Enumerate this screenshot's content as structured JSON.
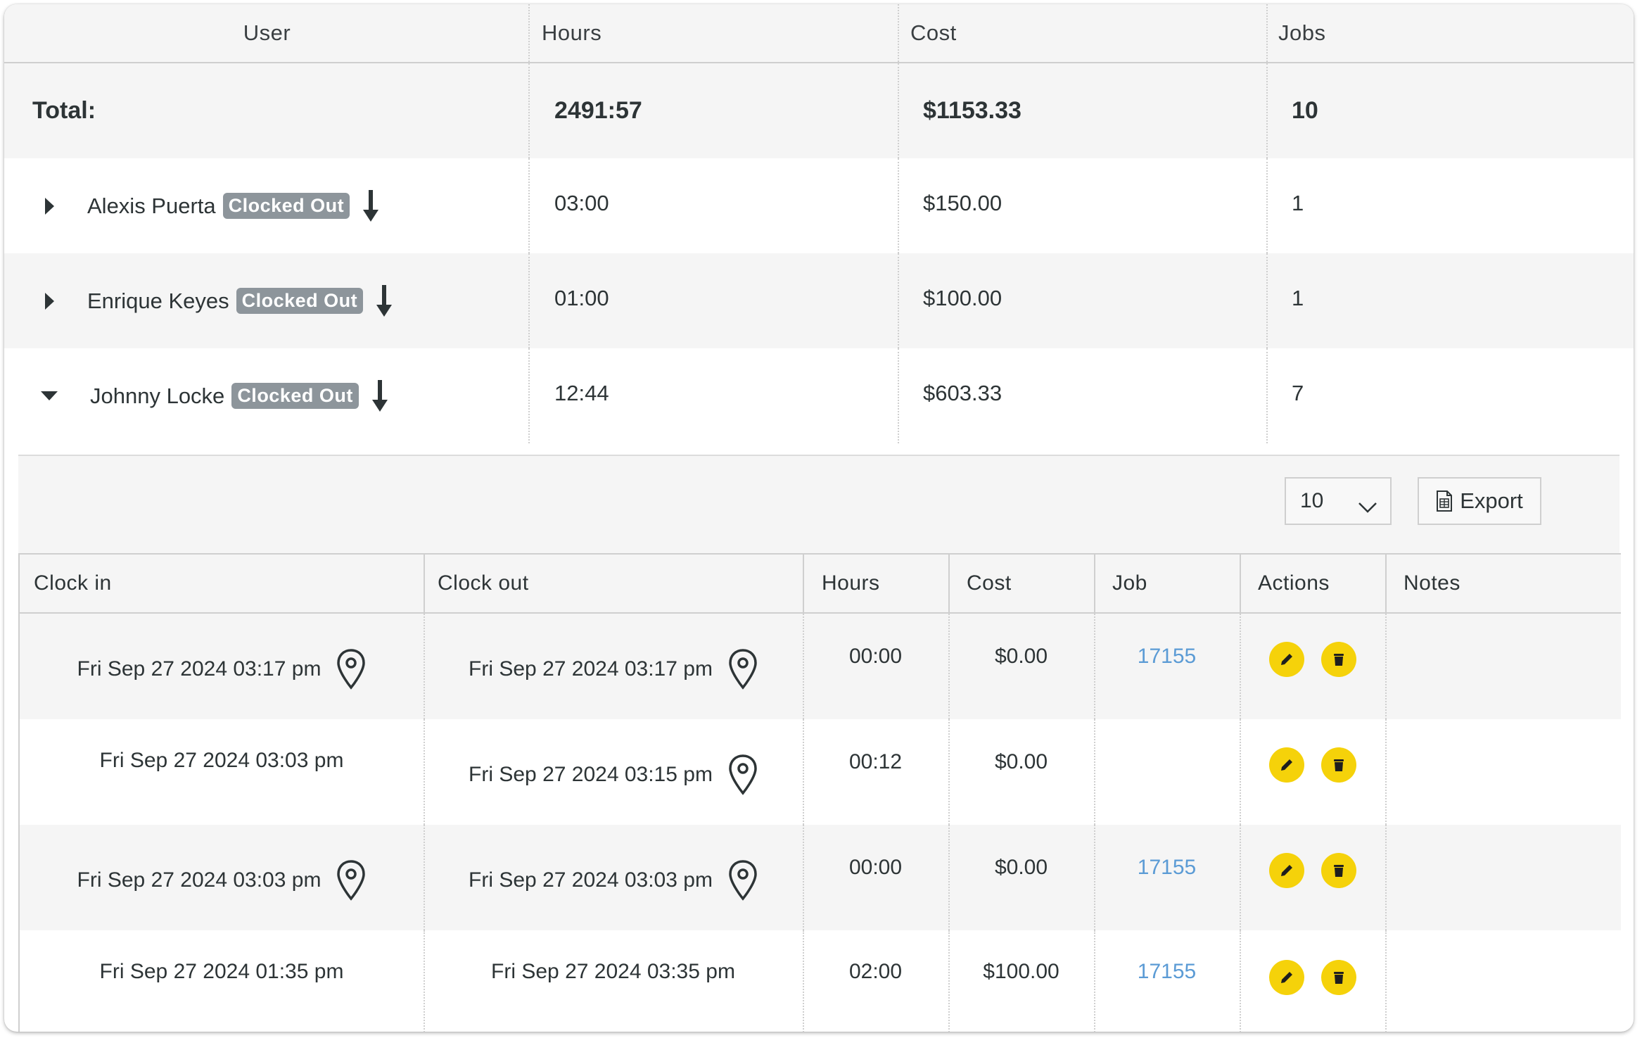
{
  "summary_table": {
    "headers": {
      "user": "User",
      "hours": "Hours",
      "cost": "Cost",
      "jobs": "Jobs"
    },
    "total": {
      "label": "Total:",
      "hours": "2491:57",
      "cost": "$1153.33",
      "jobs": "10"
    },
    "users": [
      {
        "name": "Alexis Puerta",
        "status": "Clocked Out",
        "hours": "03:00",
        "cost": "$150.00",
        "jobs": "1",
        "expanded": false
      },
      {
        "name": "Enrique Keyes",
        "status": "Clocked Out",
        "hours": "01:00",
        "cost": "$100.00",
        "jobs": "1",
        "expanded": false
      },
      {
        "name": "Johnny Locke",
        "status": "Clocked Out",
        "hours": "12:44",
        "cost": "$603.33",
        "jobs": "7",
        "expanded": true
      }
    ]
  },
  "detail_panel": {
    "page_size": "10",
    "export_label": "Export",
    "headers": {
      "clock_in": "Clock in",
      "clock_out": "Clock out",
      "hours": "Hours",
      "cost": "Cost",
      "job": "Job",
      "actions": "Actions",
      "notes": "Notes"
    },
    "rows": [
      {
        "clock_in": "Fri Sep 27 2024 03:17 pm",
        "clock_out": "Fri Sep 27 2024 03:17 pm",
        "hours": "00:00",
        "cost": "$0.00",
        "job": "17155",
        "notes": ""
      },
      {
        "clock_in": "Fri Sep 27 2024 03:03 pm",
        "clock_out": "Fri Sep 27 2024 03:15 pm",
        "hours": "00:12",
        "cost": "$0.00",
        "job": "",
        "notes": ""
      },
      {
        "clock_in": "Fri Sep 27 2024 03:03 pm",
        "clock_out": "Fri Sep 27 2024 03:03 pm",
        "hours": "00:00",
        "cost": "$0.00",
        "job": "17155",
        "notes": ""
      },
      {
        "clock_in": "Fri Sep 27 2024 01:35 pm",
        "clock_out": "Fri Sep 27 2024 03:35 pm",
        "hours": "02:00",
        "cost": "$100.00",
        "job": "17155",
        "notes": ""
      }
    ]
  },
  "colors": {
    "action_button": "#f5d20a",
    "job_link": "#5b9bd5",
    "badge": "#8d959b",
    "row_alt": "#f5f5f5"
  }
}
